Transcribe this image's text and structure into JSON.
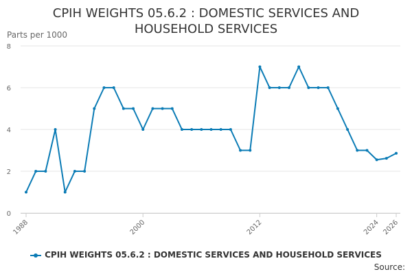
{
  "chart_data": {
    "type": "line",
    "title": "CPIH WEIGHTS 05.6.2 : DOMESTIC SERVICES AND HOUSEHOLD SERVICES",
    "ylabel": "Parts per 1000",
    "xlabel": "",
    "ylim": [
      0,
      8
    ],
    "yticks": [
      0,
      2,
      4,
      6,
      8
    ],
    "xlim": [
      1988,
      2026
    ],
    "xticks": [
      1988,
      2000,
      2012,
      2024,
      2026
    ],
    "grid": true,
    "legend_position": "bottom",
    "series": [
      {
        "name": "CPIH WEIGHTS 05.6.2 : DOMESTIC SERVICES AND HOUSEHOLD SERVICES",
        "color": "#0a7bb5",
        "x": [
          1988,
          1989,
          1990,
          1991,
          1992,
          1993,
          1994,
          1995,
          1996,
          1997,
          1998,
          1999,
          2000,
          2001,
          2002,
          2003,
          2004,
          2005,
          2006,
          2007,
          2008,
          2009,
          2010,
          2011,
          2012,
          2013,
          2014,
          2015,
          2016,
          2017,
          2018,
          2019,
          2020,
          2021,
          2022,
          2023,
          2024,
          2025,
          2026
        ],
        "values": [
          1,
          2,
          2,
          4,
          1,
          2,
          2,
          5,
          6,
          6,
          5,
          5,
          4,
          5,
          5,
          5,
          4,
          4,
          4,
          4,
          4,
          4,
          3,
          3,
          7,
          6,
          6,
          6,
          7,
          6,
          6,
          6,
          5,
          4,
          3,
          3,
          2.55,
          2.62,
          2.86
        ]
      }
    ]
  },
  "legend": {
    "label": "CPIH WEIGHTS 05.6.2 : DOMESTIC SERVICES AND HOUSEHOLD SERVICES"
  },
  "source_label": "Source:"
}
